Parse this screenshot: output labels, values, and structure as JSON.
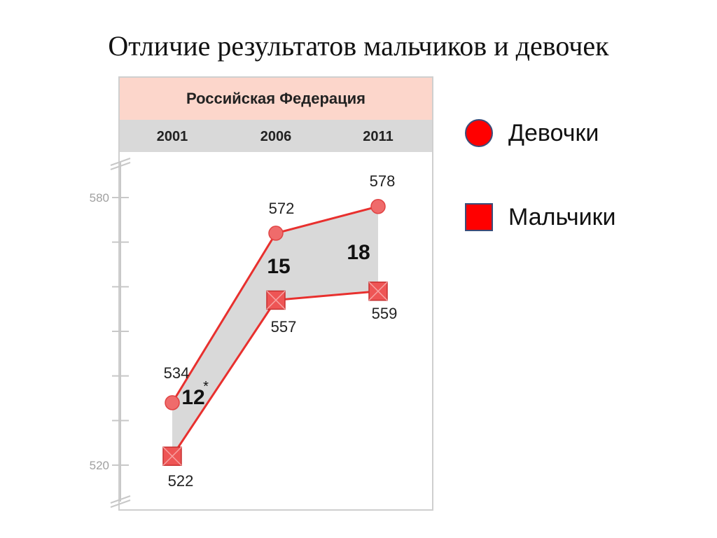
{
  "slide": {
    "title": "Отличие результатов мальчиков и девочек"
  },
  "chart_data": {
    "type": "line",
    "title": "Российская Федерация",
    "categories": [
      "2001",
      "2006",
      "2011"
    ],
    "series": [
      {
        "name": "Девочки",
        "values": [
          534,
          572,
          578
        ],
        "marker": "circle",
        "color": "#e8302e"
      },
      {
        "name": "Мальчики",
        "values": [
          522,
          557,
          559
        ],
        "marker": "square",
        "color": "#e8302e"
      }
    ],
    "differences": [
      "12",
      "15",
      "18"
    ],
    "difference_note": "*",
    "yticks": [
      "580",
      "520"
    ],
    "ylim": [
      516,
      586
    ],
    "gap_fill_color": "#d9d9d9",
    "header_color": "#fcd6cb",
    "year_band_color": "#d9d9d9",
    "grid": false,
    "legend_position": "right"
  },
  "legend": {
    "items": [
      {
        "label": "Девочки",
        "marker": "circle",
        "color": "#ff0000"
      },
      {
        "label": "Мальчики",
        "marker": "square",
        "color": "#ff0000"
      }
    ]
  }
}
